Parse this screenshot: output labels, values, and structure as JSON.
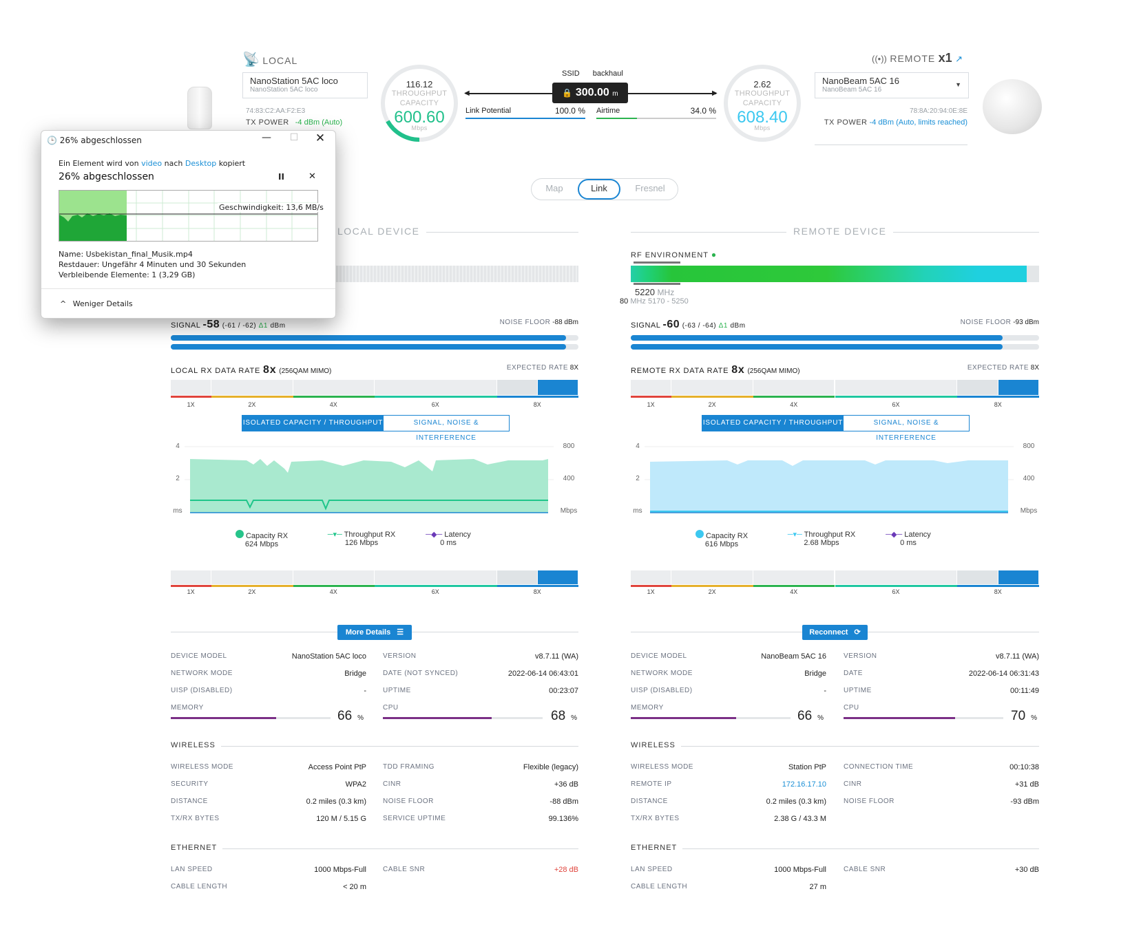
{
  "local": {
    "header": "LOCAL",
    "device_name": "NanoStation 5AC loco",
    "device_sub": "NanoStation 5AC loco",
    "mac": "74:83:C2:AA:F2:E3",
    "tx_power_label": "TX POWER",
    "tx_power_value": "-4 dBm (Auto)",
    "throughput": "116.12",
    "throughput_label": "THROUGHPUT",
    "capacity_label": "CAPACITY",
    "capacity": "600.60",
    "unit": "Mbps"
  },
  "remote": {
    "header": "REMOTE",
    "count": "x1",
    "device_name": "NanoBeam 5AC 16",
    "device_sub": "NanoBeam 5AC 16",
    "mac": "78:8A:20:94:0E:8E",
    "tx_power_label": "TX POWER",
    "tx_power_value": "-4 dBm (Auto, limits reached)",
    "throughput": "2.62",
    "throughput_label": "THROUGHPUT",
    "capacity_label": "CAPACITY",
    "capacity": "608.40",
    "unit": "Mbps"
  },
  "link": {
    "ssid_label": "SSID",
    "ssid_value": "backhaul",
    "distance": "300.00",
    "distance_unit": "m",
    "link_potential_label": "Link Potential",
    "link_potential_value": "100.0 %",
    "airtime_label": "Airtime",
    "airtime_value": "34.0 %"
  },
  "tabs": [
    "Map",
    "Link",
    "Fresnel"
  ],
  "sections": {
    "local_device": "LOCAL DEVICE",
    "remote_device": "REMOTE DEVICE"
  },
  "rf": {
    "title": "RF ENVIRONMENT",
    "freq": "5220",
    "freq_unit": "MHz",
    "width": "80",
    "range": "MHz 5170 - 5250"
  },
  "local_signal": {
    "label": "SIGNAL",
    "value": "-58",
    "detail": "(-61 / -62)",
    "delta": "Δ1",
    "unit": "dBm",
    "noise_label": "NOISE FLOOR",
    "noise_value": "-88 dBm",
    "bar0": 0.97,
    "bar1": 0.97
  },
  "remote_signal": {
    "label": "SIGNAL",
    "value": "-60",
    "detail": "(-63 / -64)",
    "delta": "Δ1",
    "unit": "dBm",
    "noise_label": "NOISE FLOOR",
    "noise_value": "-93 dBm",
    "bar0": 0.91,
    "bar1": 0.91
  },
  "local_rate": {
    "label": "LOCAL RX DATA RATE",
    "value": "8x",
    "mod": "(256QAM MIMO)",
    "expected_label": "EXPECTED RATE",
    "expected_value": "8X"
  },
  "remote_rate": {
    "label": "REMOTE RX DATA RATE",
    "value": "8x",
    "mod": "(256QAM MIMO)",
    "expected_label": "EXPECTED RATE",
    "expected_value": "8X"
  },
  "rate_ticks": [
    "1X",
    "2X",
    "4X",
    "6X",
    "8X"
  ],
  "toggle": {
    "on": "ISOLATED CAPACITY / THROUGHPUT",
    "off": "SIGNAL, NOISE & INTERFERENCE"
  },
  "chart_axis": {
    "left_ticks": [
      "4",
      "2",
      "ms"
    ],
    "right_ticks": [
      "800",
      "400",
      "Mbps"
    ]
  },
  "local_legend": {
    "capacity_label": "Capacity RX",
    "capacity_value": "624 Mbps",
    "throughput_label": "Throughput RX",
    "throughput_value": "126 Mbps",
    "latency_label": "Latency",
    "latency_value": "0 ms"
  },
  "remote_legend": {
    "capacity_label": "Capacity RX",
    "capacity_value": "616 Mbps",
    "throughput_label": "Throughput RX",
    "throughput_value": "2.68 Mbps",
    "latency_label": "Latency",
    "latency_value": "0 ms"
  },
  "buttons": {
    "more_details": "More Details",
    "reconnect": "Reconnect"
  },
  "local_details": {
    "device_model_label": "DEVICE MODEL",
    "device_model": "NanoStation 5AC loco",
    "network_mode_label": "NETWORK MODE",
    "network_mode": "Bridge",
    "uisp_label": "UISP (DISABLED)",
    "uisp": "-",
    "memory_label": "MEMORY",
    "memory": "66",
    "memory_frac": 0.66,
    "version_label": "VERSION",
    "version": "v8.7.11 (WA)",
    "date_label": "DATE (NOT SYNCED)",
    "date": "2022-06-14 06:43:01",
    "uptime_label": "UPTIME",
    "uptime": "00:23:07",
    "cpu_label": "CPU",
    "cpu": "68",
    "cpu_frac": 0.68,
    "pct": "%"
  },
  "remote_details": {
    "device_model_label": "DEVICE MODEL",
    "device_model": "NanoBeam 5AC 16",
    "network_mode_label": "NETWORK MODE",
    "network_mode": "Bridge",
    "uisp_label": "UISP (DISABLED)",
    "uisp": "-",
    "memory_label": "MEMORY",
    "memory": "66",
    "memory_frac": 0.66,
    "version_label": "VERSION",
    "version": "v8.7.11 (WA)",
    "date_label": "DATE",
    "date": "2022-06-14 06:31:43",
    "uptime_label": "UPTIME",
    "uptime": "00:11:49",
    "cpu_label": "CPU",
    "cpu": "70",
    "cpu_frac": 0.7,
    "pct": "%"
  },
  "local_wireless": {
    "title": "WIRELESS",
    "mode_label": "WIRELESS MODE",
    "mode": "Access Point PtP",
    "security_label": "SECURITY",
    "security": "WPA2",
    "distance_label": "DISTANCE",
    "distance": "0.2 miles (0.3 km)",
    "txrx_label": "TX/RX BYTES",
    "txrx": "120 M / 5.15 G",
    "tdd_label": "TDD FRAMING",
    "tdd": "Flexible (legacy)",
    "cinr_label": "CINR",
    "cinr": "+36 dB",
    "noise_label": "NOISE FLOOR",
    "noise": "-88 dBm",
    "service_label": "SERVICE UPTIME",
    "service": "99.136%"
  },
  "remote_wireless": {
    "title": "WIRELESS",
    "mode_label": "WIRELESS MODE",
    "mode": "Station PtP",
    "remote_ip_label": "REMOTE IP",
    "remote_ip": "172.16.17.10",
    "distance_label": "DISTANCE",
    "distance": "0.2 miles (0.3 km)",
    "txrx_label": "TX/RX BYTES",
    "txrx": "2.38 G / 43.3 M",
    "conn_label": "CONNECTION TIME",
    "conn": "00:10:38",
    "cinr_label": "CINR",
    "cinr": "+31 dB",
    "noise_label": "NOISE FLOOR",
    "noise": "-93 dBm"
  },
  "local_ethernet": {
    "title": "ETHERNET",
    "lan_label": "LAN SPEED",
    "lan": "1000 Mbps-Full",
    "cable_label": "CABLE LENGTH",
    "cable": "< 20 m",
    "snr_label": "CABLE SNR",
    "snr": "+28 dB"
  },
  "remote_ethernet": {
    "title": "ETHERNET",
    "lan_label": "LAN SPEED",
    "lan": "1000 Mbps-Full",
    "cable_label": "CABLE LENGTH",
    "cable": "27 m",
    "snr_label": "CABLE SNR",
    "snr": "+30 dB"
  },
  "dialog": {
    "title": "26% abgeschlossen",
    "desc_pre": "Ein Element wird von",
    "desc_src": "video",
    "desc_mid": "nach",
    "desc_dst": "Desktop",
    "desc_post": "kopiert",
    "progress_title": "26% abgeschlossen",
    "progress": 0.26,
    "speed": "Geschwindigkeit: 13,6 MB/s",
    "name": "Name:  Usbekistan_final_Musik.mp4",
    "remaining": "Restdauer:  Ungefähr 4 Minuten und 30 Sekunden",
    "items": "Verbleibende Elemente:  1 (3,29 GB)",
    "less": "Weniger Details"
  },
  "colors": {
    "accent": "#1a85d2",
    "green": "#2bb34f",
    "teal": "#1fc7a0",
    "cyan": "#3cc8f0"
  }
}
